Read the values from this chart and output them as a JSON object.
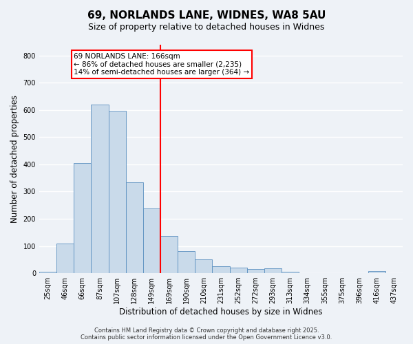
{
  "title": "69, NORLANDS LANE, WIDNES, WA8 5AU",
  "subtitle": "Size of property relative to detached houses in Widnes",
  "xlabel": "Distribution of detached houses by size in Widnes",
  "ylabel": "Number of detached properties",
  "bar_labels": [
    "25sqm",
    "46sqm",
    "66sqm",
    "87sqm",
    "107sqm",
    "128sqm",
    "149sqm",
    "169sqm",
    "190sqm",
    "210sqm",
    "231sqm",
    "252sqm",
    "272sqm",
    "293sqm",
    "313sqm",
    "334sqm",
    "355sqm",
    "375sqm",
    "396sqm",
    "416sqm",
    "437sqm"
  ],
  "bar_values": [
    5,
    110,
    405,
    620,
    597,
    335,
    238,
    138,
    80,
    52,
    25,
    20,
    16,
    18,
    5,
    0,
    0,
    0,
    0,
    8,
    0
  ],
  "bar_color": "#c9daea",
  "bar_edge_color": "#5a8fc0",
  "vline_index": 7,
  "vline_color": "red",
  "annotation_line1": "69 NORLANDS LANE: 166sqm",
  "annotation_line2": "← 86% of detached houses are smaller (2,235)",
  "annotation_line3": "14% of semi-detached houses are larger (364) →",
  "box_facecolor": "#ffffff",
  "box_edgecolor": "red",
  "ylim": [
    0,
    840
  ],
  "yticks": [
    0,
    100,
    200,
    300,
    400,
    500,
    600,
    700,
    800
  ],
  "footer_line1": "Contains HM Land Registry data © Crown copyright and database right 2025.",
  "footer_line2": "Contains public sector information licensed under the Open Government Licence v3.0.",
  "bg_color": "#eef2f7",
  "grid_color": "#ffffff",
  "title_fontsize": 11,
  "subtitle_fontsize": 9,
  "tick_fontsize": 7,
  "axis_label_fontsize": 8.5,
  "footer_fontsize": 6,
  "annot_fontsize": 7.5
}
